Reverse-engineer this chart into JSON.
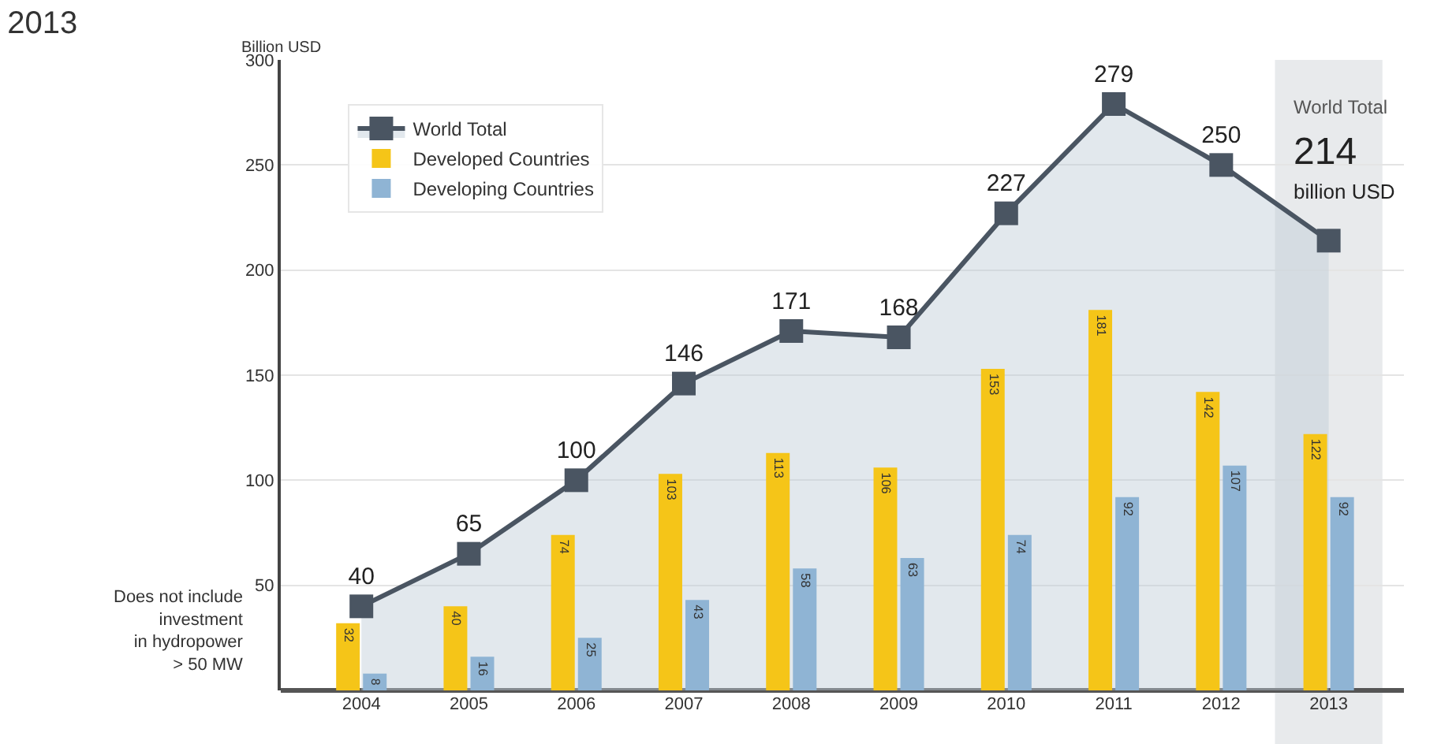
{
  "chart_data": {
    "type": "bar",
    "title": "2013",
    "ylabel": "Billion USD",
    "categories": [
      "2004",
      "2005",
      "2006",
      "2007",
      "2008",
      "2009",
      "2010",
      "2011",
      "2012",
      "2013"
    ],
    "series": [
      {
        "name": "World Total",
        "type": "area",
        "color": "#4a5562",
        "values": [
          40,
          65,
          100,
          146,
          171,
          168,
          227,
          279,
          250,
          214
        ],
        "value_labels": [
          "40",
          "65",
          "100",
          "146",
          "171",
          "168",
          "227",
          "279",
          "250",
          null
        ]
      },
      {
        "name": "Developed Countries",
        "color": "#f5c518",
        "values": [
          32,
          40,
          74,
          103,
          113,
          106,
          153,
          181,
          142,
          122
        ],
        "value_labels": [
          "32",
          "40",
          "74",
          "103",
          "113",
          "106",
          "153",
          "181",
          "142",
          "122"
        ]
      },
      {
        "name": "Developing Countries",
        "color": "#8fb4d4",
        "values": [
          8,
          16,
          25,
          43,
          58,
          63,
          74,
          92,
          107,
          92
        ],
        "value_labels": [
          "8",
          "16",
          "25",
          "43",
          "58",
          "63",
          "74",
          "92",
          "107",
          "92"
        ]
      }
    ],
    "ylim": [
      0,
      300
    ],
    "yticks": [
      50,
      100,
      150,
      200,
      250,
      300
    ],
    "bands": [
      {
        "axis": "x",
        "from": "2013",
        "to": "2013",
        "color": "#d9dcdf"
      }
    ],
    "annotations": [
      "Does not include\ninvestment\nin hydropower\n> 50 MW",
      "World Total",
      "214",
      "billion USD"
    ],
    "grid": "y",
    "legend": "top left",
    "marker": "square"
  }
}
